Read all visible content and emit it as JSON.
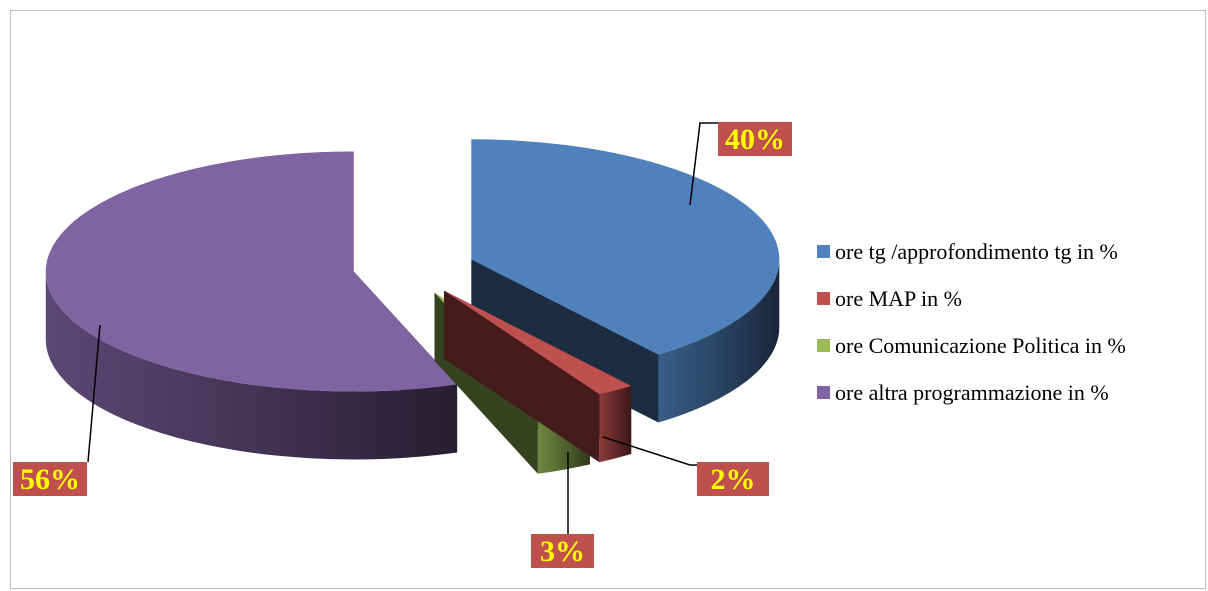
{
  "chart_data": {
    "type": "pie",
    "style": "3d-exploded",
    "categories": [
      "ore tg /approfondimento tg in %",
      "ore MAP in %",
      "ore Comunicazione Politica in %",
      "ore altra programmazione in %"
    ],
    "values": [
      40,
      2,
      3,
      56
    ],
    "data_labels": [
      "40%",
      "2%",
      "3%",
      "56%"
    ],
    "colors": [
      "#4F81BD",
      "#C0504D",
      "#9BBB59",
      "#8064A2"
    ],
    "label_box_color": "#C0504D",
    "label_text_color": "#FFFF00",
    "legend_position": "right"
  }
}
